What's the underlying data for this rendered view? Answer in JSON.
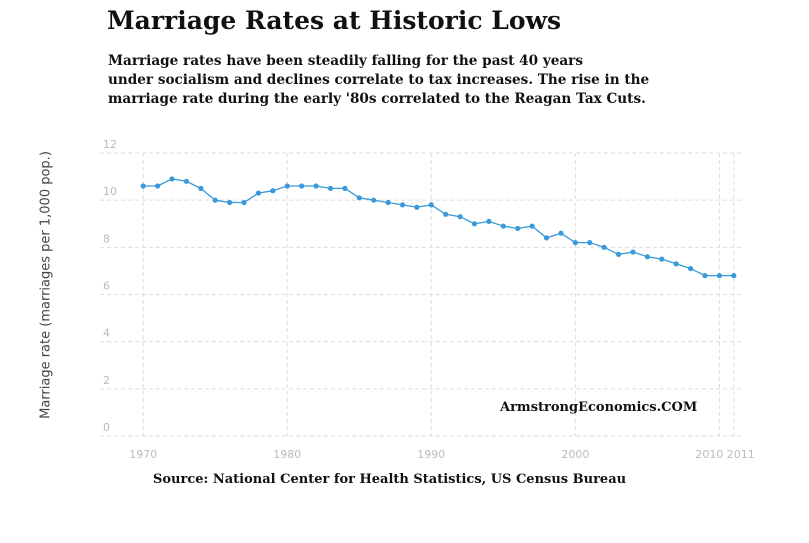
{
  "header": {
    "title": "Marriage Rates at Historic Lows",
    "subtitle_lines": [
      "Marriage rates have been steadily falling for the past 40 years",
      "under socialism and declines correlate to tax increases. The rise in the",
      "marriage rate during the early '80s correlated to the Reagan Tax Cuts."
    ]
  },
  "footer": {
    "watermark": "ArmstrongEconomics.COM",
    "source": "Source: National Center for Health Statistics, US Census Bureau"
  },
  "chart_data": {
    "type": "line",
    "title": "Marriage Rates at Historic Lows",
    "ylabel": "Marriage rate (marriages per 1,000 pop.)",
    "xlabel": "",
    "xlim": [
      1967,
      2011.5
    ],
    "ylim": [
      0,
      12
    ],
    "x_ticks": [
      1970,
      1980,
      1990,
      2000,
      2010,
      2011
    ],
    "y_ticks": [
      0,
      2,
      4,
      6,
      8,
      10,
      12
    ],
    "grid": true,
    "line_color": "#3a9ad9",
    "series": [
      {
        "x": [
          1970,
          1971,
          1972,
          1973,
          1974,
          1975,
          1976,
          1977,
          1978,
          1979,
          1980,
          1981,
          1982,
          1983,
          1984,
          1985,
          1986,
          1987,
          1988,
          1989,
          1990,
          1991,
          1992,
          1993,
          1994,
          1995,
          1996,
          1997,
          1998,
          1999,
          2000,
          2001,
          2002,
          2003,
          2004,
          2005,
          2006,
          2007,
          2008,
          2009,
          2010,
          2011
        ],
        "values": [
          10.6,
          10.6,
          10.9,
          10.8,
          10.5,
          10.0,
          9.9,
          9.9,
          10.3,
          10.4,
          10.6,
          10.6,
          10.6,
          10.5,
          10.5,
          10.1,
          10.0,
          9.9,
          9.8,
          9.7,
          9.8,
          9.4,
          9.3,
          9.0,
          9.1,
          8.9,
          8.8,
          8.9,
          8.4,
          8.6,
          8.2,
          8.2,
          8.0,
          7.7,
          7.8,
          7.6,
          7.5,
          7.3,
          7.1,
          6.8,
          6.8,
          6.8
        ]
      }
    ]
  }
}
